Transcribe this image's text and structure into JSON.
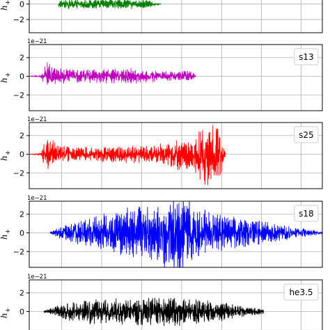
{
  "chart_data": [
    {
      "type": "line",
      "name": "",
      "legend": "",
      "color": "#008000",
      "ylabel": "h",
      "ylabel_sub": "+",
      "ylim": [
        -3.7,
        3.4
      ],
      "yticks": [
        -2,
        0
      ],
      "exponent_label": "",
      "x": [
        0.1,
        0.17,
        0.25,
        0.33,
        0.4,
        0.45
      ],
      "amplitude": [
        0.5,
        0.5,
        0.5,
        0.5,
        0.5,
        0.0
      ],
      "grid": true
    },
    {
      "type": "line",
      "name": "s13",
      "legend": "s13",
      "color": "#bf00bf",
      "ylabel": "h",
      "ylabel_sub": "+",
      "ylim": [
        -3.7,
        3.4
      ],
      "yticks": [
        -2,
        0,
        2
      ],
      "exponent_label": "1e−21",
      "x": [
        0.0,
        0.04,
        0.06,
        0.09,
        0.15,
        0.25,
        0.35,
        0.42,
        0.5,
        0.54,
        0.56,
        0.57
      ],
      "amplitude": [
        0.0,
        0.1,
        1.2,
        0.7,
        0.6,
        0.6,
        0.7,
        0.5,
        0.4,
        0.5,
        0.3,
        0.0
      ],
      "grid": true
    },
    {
      "type": "line",
      "name": "s25",
      "legend": "s25",
      "color": "#ff0000",
      "ylabel": "h",
      "ylabel_sub": "+",
      "ylim": [
        -3.7,
        3.4
      ],
      "yticks": [
        -2,
        0,
        2
      ],
      "exponent_label": "1e−21",
      "x": [
        0.0,
        0.04,
        0.05,
        0.07,
        0.1,
        0.2,
        0.3,
        0.4,
        0.46,
        0.52,
        0.56,
        0.58,
        0.61,
        0.64,
        0.66,
        0.67
      ],
      "amplitude": [
        0.0,
        0.1,
        1.3,
        1.5,
        0.7,
        0.6,
        0.7,
        0.8,
        1.0,
        1.4,
        1.2,
        2.2,
        2.8,
        2.4,
        1.5,
        0.0
      ],
      "grid": true
    },
    {
      "type": "line",
      "name": "s18",
      "legend": "s18",
      "color": "#0000ff",
      "ylabel": "h",
      "ylabel_sub": "+",
      "ylim": [
        -3.7,
        3.4
      ],
      "yticks": [
        -2,
        0,
        2
      ],
      "exponent_label": "1e−21",
      "x": [
        0.07,
        0.1,
        0.2,
        0.3,
        0.38,
        0.46,
        0.52,
        0.58,
        0.65,
        0.75,
        0.85,
        0.93,
        1.0
      ],
      "amplitude": [
        0.05,
        0.5,
        1.3,
        2.0,
        2.4,
        2.9,
        3.2,
        2.4,
        1.6,
        1.1,
        0.8,
        0.4,
        0.15
      ],
      "grid": true
    },
    {
      "type": "line",
      "name": "he3.5",
      "legend": "he3.5",
      "color": "#000000",
      "ylabel": "h",
      "ylabel_sub": "+",
      "ylim": [
        -3.7,
        3.4
      ],
      "yticks": [
        0,
        2
      ],
      "exponent_label": "1e−21",
      "x": [
        0.05,
        0.1,
        0.18,
        0.25,
        0.32,
        0.4,
        0.46,
        0.52,
        0.6,
        0.66,
        0.72,
        0.8
      ],
      "amplitude": [
        0.05,
        0.6,
        1.0,
        1.2,
        1.1,
        1.2,
        1.3,
        1.2,
        1.0,
        0.8,
        0.5,
        0.2
      ],
      "grid": true
    }
  ]
}
